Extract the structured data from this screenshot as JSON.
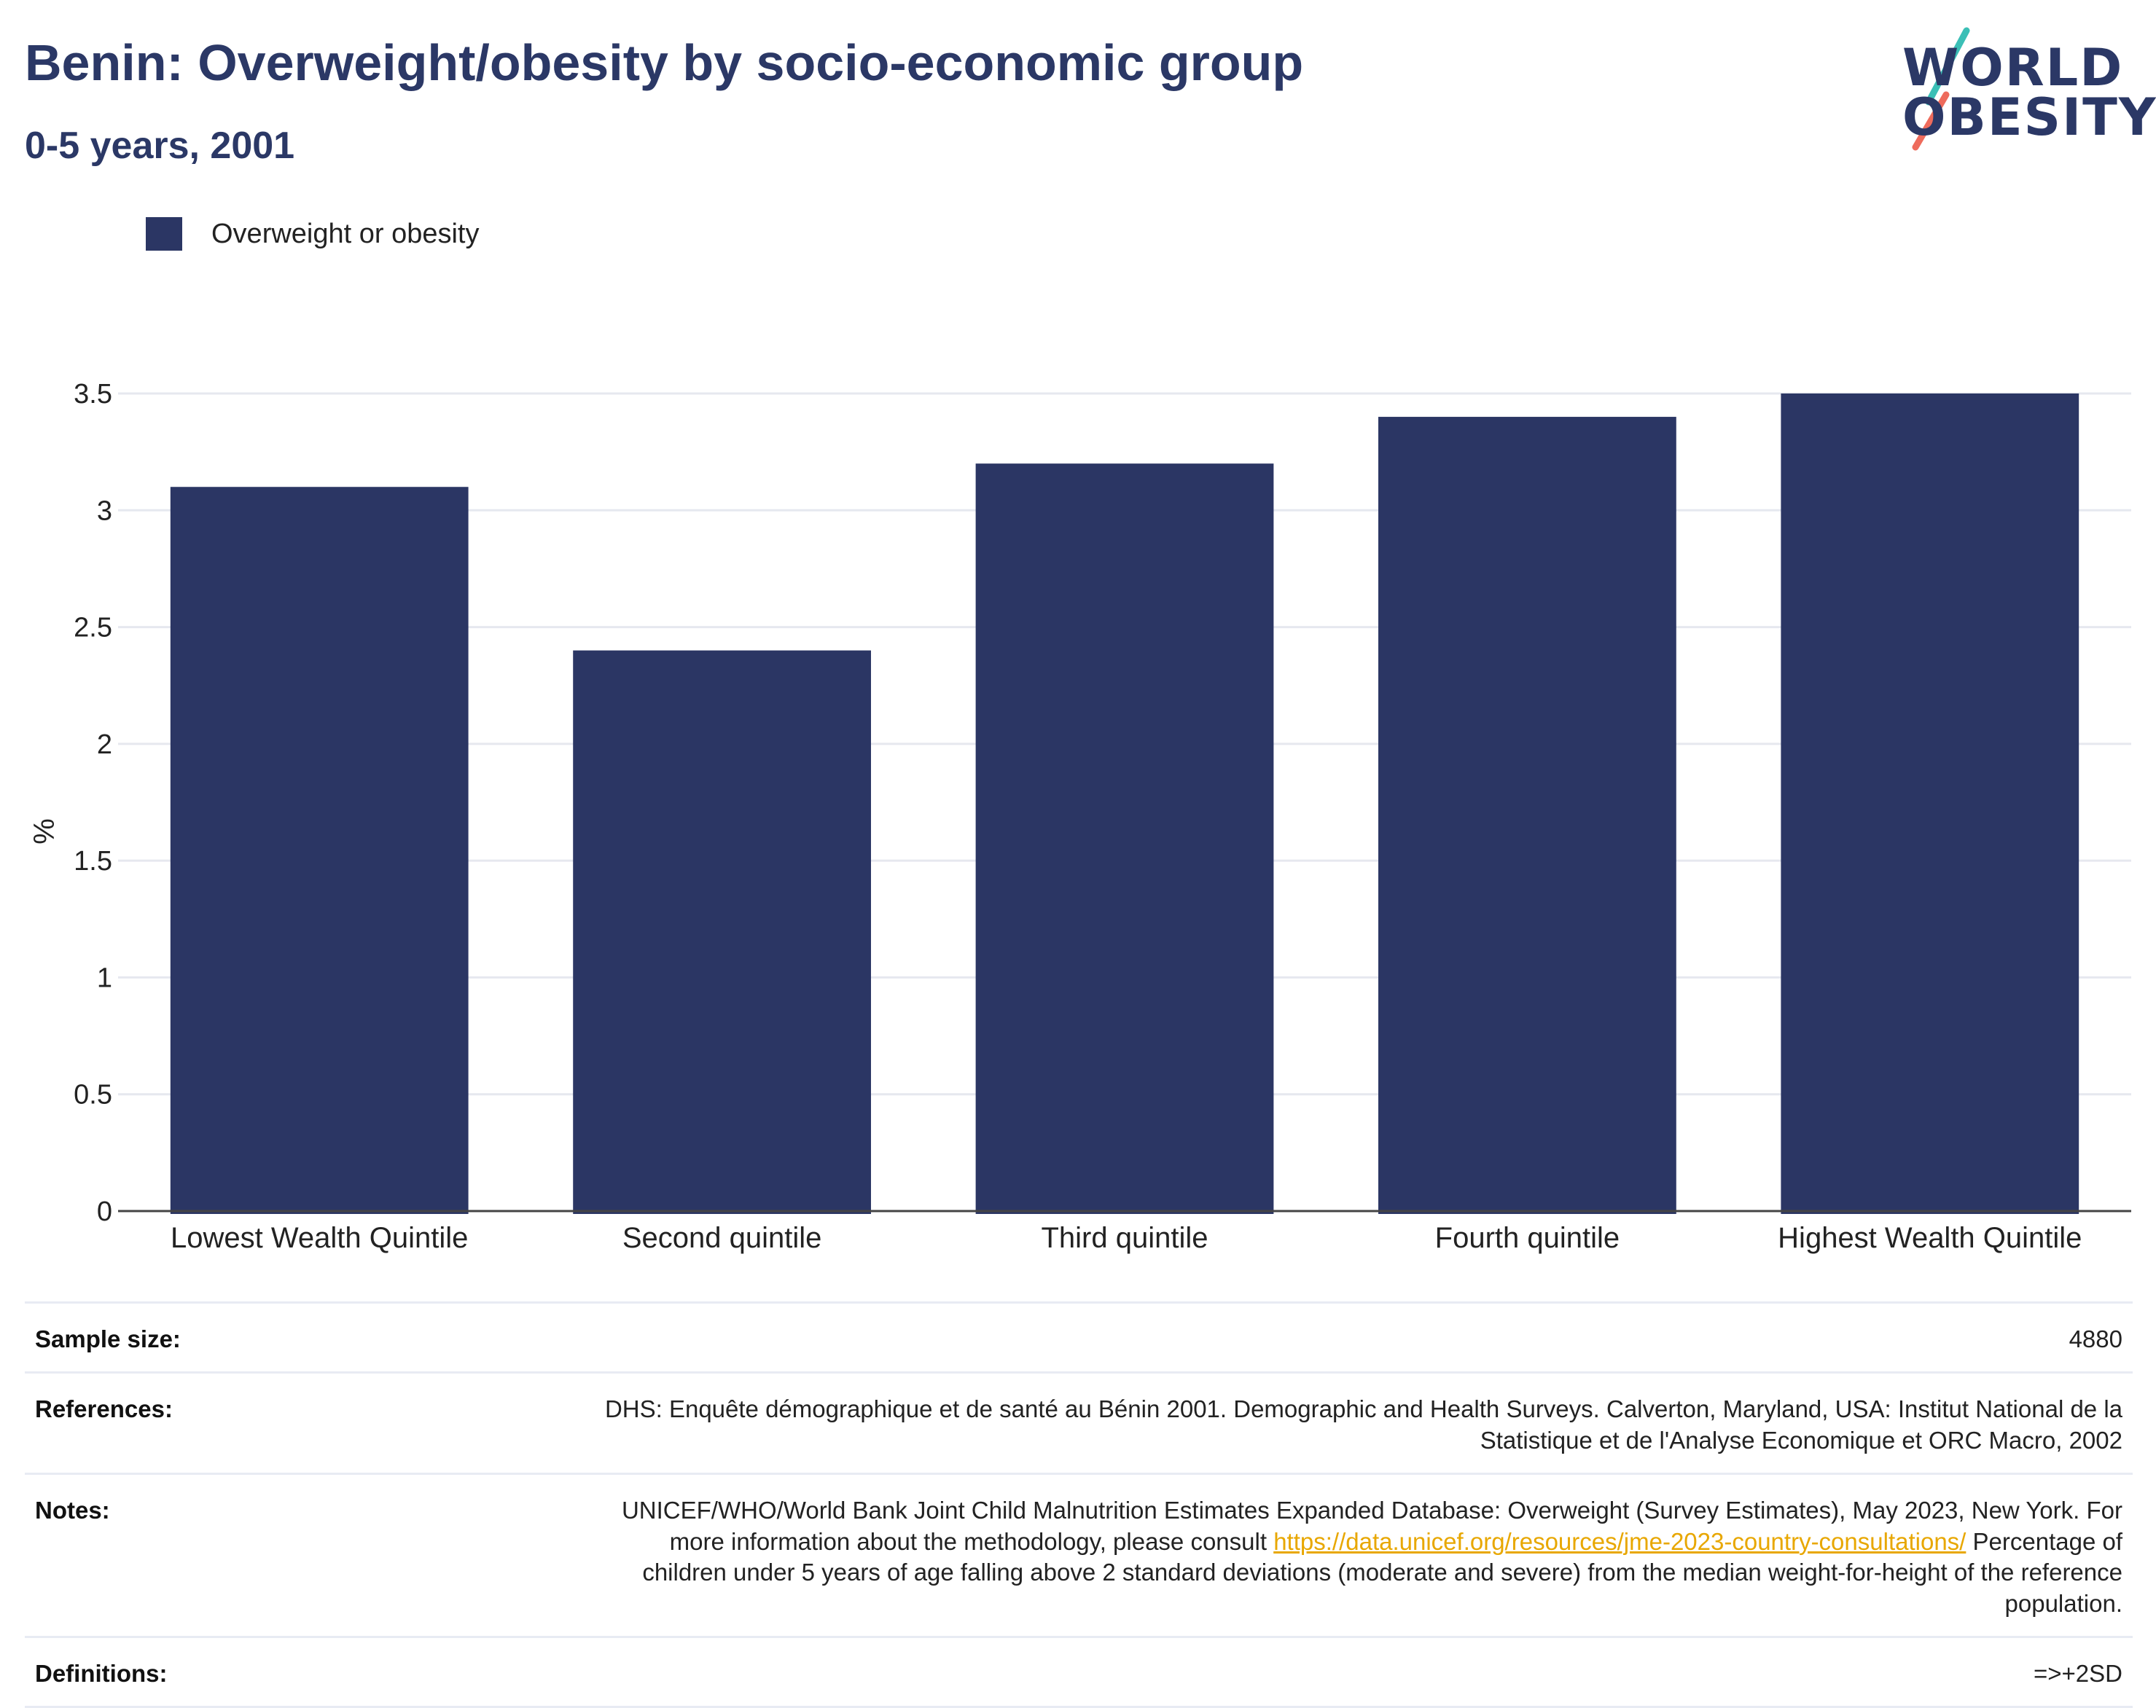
{
  "header": {
    "title": "Benin: Overweight/obesity by socio-economic group",
    "subtitle": "0-5 years, 2001"
  },
  "logo": {
    "line1": "WORLD",
    "line2": "OBESITY",
    "accent_teal": "#3bbfb6",
    "accent_coral": "#ee6b5c"
  },
  "colors": {
    "bar": "#2b3664",
    "text": "#222222",
    "title": "#2b3866",
    "grid": "#e6e8ef",
    "link": "#e8a700"
  },
  "chart_data": {
    "type": "bar",
    "title": "Benin: Overweight/obesity by socio-economic group",
    "subtitle": "0-5 years, 2001",
    "categories": [
      "Lowest Wealth Quintile",
      "Second quintile",
      "Third quintile",
      "Fourth quintile",
      "Highest Wealth Quintile"
    ],
    "series": [
      {
        "name": "Overweight or obesity",
        "values": [
          3.1,
          2.4,
          3.2,
          3.4,
          3.5
        ]
      }
    ],
    "xlabel": "",
    "ylabel": "%",
    "ylim": [
      0,
      3.5
    ],
    "yticks": [
      "0",
      "0.5",
      "1",
      "1.5",
      "2",
      "2.5",
      "3",
      "3.5"
    ],
    "grid": true,
    "legend_position": "top-left"
  },
  "footer": {
    "sample_size_label": "Sample size:",
    "sample_size_value": "4880",
    "references_label": "References:",
    "references_value": "DHS: Enquête démographique et de santé au Bénin 2001. Demographic and Health Surveys. Calverton, Maryland, USA: Institut National de la Statistique et de l'Analyse Economique et ORC Macro, 2002",
    "notes_label": "Notes:",
    "notes_text_1": "UNICEF/WHO/World Bank Joint Child Malnutrition Estimates Expanded Database: Overweight (Survey Estimates), May 2023, New York. For more information about the methodology, please consult ",
    "notes_link": "https://data.unicef.org/resources/jme-2023-country-consultations/",
    "notes_text_2": " Percentage of children under 5 years of age falling above 2 standard deviations (moderate and severe) from the median weight-for-height of the reference population.",
    "definitions_label": "Definitions:",
    "definitions_value": "=>+2SD"
  }
}
